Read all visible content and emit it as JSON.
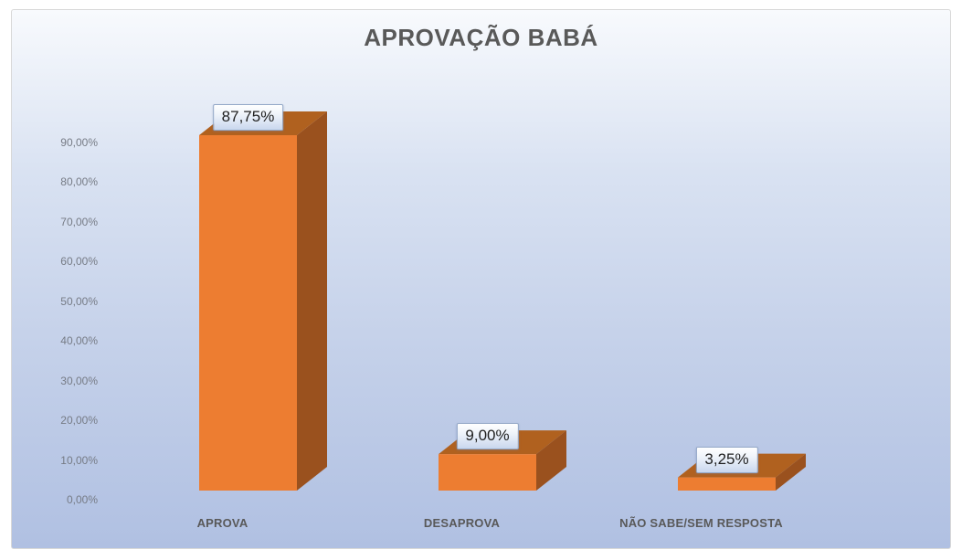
{
  "chart_data": {
    "type": "bar",
    "style": "3d-column",
    "title": "APROVAÇÃO BABÁ",
    "categories": [
      "APROVA",
      "DESAPROVA",
      "NÃO SABE/SEM RESPOSTA"
    ],
    "values": [
      87.75,
      9,
      3.25
    ],
    "data_labels": [
      "87,75%",
      "9,00%",
      "3,25%"
    ],
    "y_ticks": [
      {
        "value": 0,
        "label": "0,00%"
      },
      {
        "value": 10,
        "label": "10,00%"
      },
      {
        "value": 20,
        "label": "20,00%"
      },
      {
        "value": 30,
        "label": "30,00%"
      },
      {
        "value": 40,
        "label": "40,00%"
      },
      {
        "value": 50,
        "label": "50,00%"
      },
      {
        "value": 60,
        "label": "60,00%"
      },
      {
        "value": 70,
        "label": "70,00%"
      },
      {
        "value": 80,
        "label": "80,00%"
      },
      {
        "value": 90,
        "label": "90,00%"
      }
    ],
    "ylim": [
      0,
      90
    ],
    "xlabel": "",
    "ylabel": "",
    "grid": false,
    "legend": false,
    "colors": {
      "bar_front": "#ED7D31",
      "bar_top": "#B0611F",
      "bar_side": "#9A511E",
      "plot_bg_top": "#F8FAFD",
      "plot_bg_mid": "#D9E2F2",
      "plot_bg_bottom": "#B0C0E2",
      "chart_border": "#D8D8D8",
      "title_color": "#595959",
      "axis_label_color": "#767B85",
      "category_label_color": "#595959",
      "data_label_bg_top": "#FFFFFF",
      "data_label_bg_bottom": "#C9D7EE",
      "data_label_border": "#95A9C8"
    }
  }
}
